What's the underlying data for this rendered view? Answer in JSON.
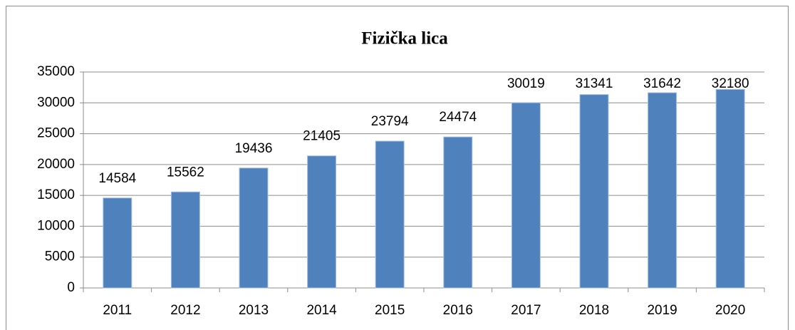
{
  "chart_data": {
    "type": "bar",
    "title": "Fizička lica",
    "categories": [
      "2011",
      "2012",
      "2013",
      "2014",
      "2015",
      "2016",
      "2017",
      "2018",
      "2019",
      "2020"
    ],
    "values": [
      14584,
      15562,
      19436,
      21405,
      23794,
      24474,
      30019,
      31341,
      31642,
      32180
    ],
    "color": "#4f81bd",
    "ylim": [
      0,
      35000
    ],
    "yticks": [
      0,
      5000,
      10000,
      15000,
      20000,
      25000,
      30000,
      35000
    ],
    "grid": true
  }
}
